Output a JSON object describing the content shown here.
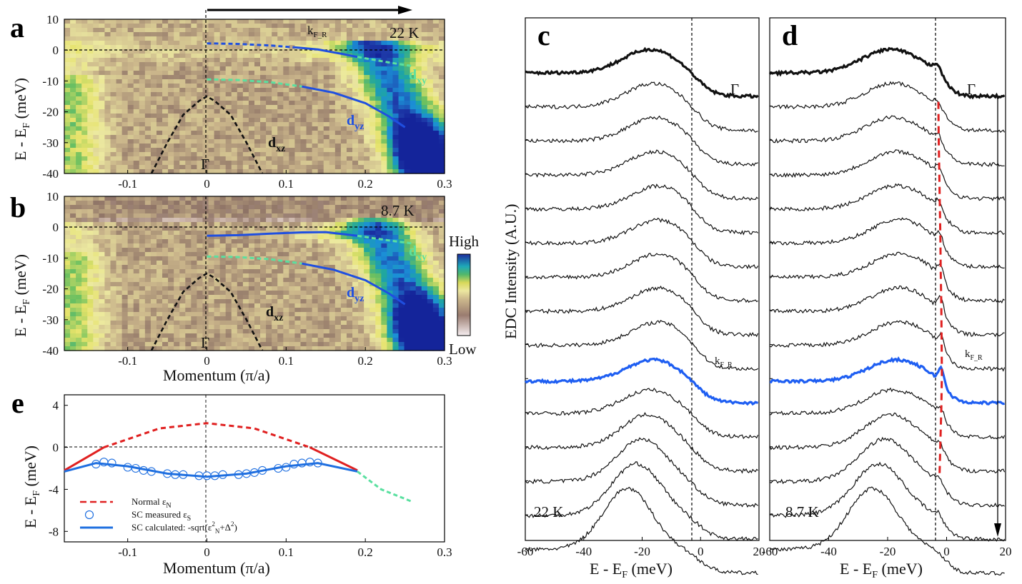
{
  "colors": {
    "dyz": "#1f4fe0",
    "dxy": "#5ae0a0",
    "dxz": "#111111",
    "normal": "#e02020",
    "fit": "#1f6fe0",
    "thick_blue": "#1e5ef2",
    "cmap": [
      "#f4ece8",
      "#c9b2a6",
      "#8e7366",
      "#c9b48a",
      "#ece9a0",
      "#e6e36a",
      "#6cc060",
      "#1fa6a0",
      "#1b8fd6",
      "#1e3aa8",
      "#14249a"
    ]
  },
  "panel_a": {
    "letter": "a",
    "temp": "22 K",
    "kfr_label": "k",
    "kfr_sub": "F_R",
    "gamma": "Γ",
    "dxy": "d",
    "dxy_sub": "xy",
    "dyz": "d",
    "dyz_sub": "yz",
    "dxz": "d",
    "dxz_sub": "xz",
    "ylabel_main": "E - E",
    "ylabel_sub": "F",
    "ylabel_unit": " (meV)"
  },
  "panel_b": {
    "letter": "b",
    "temp": "8.7 K",
    "gamma": "Γ",
    "dxy": "d",
    "dxy_sub": "xy",
    "dyz": "d",
    "dyz_sub": "yz",
    "dxz": "d",
    "dxz_sub": "xz",
    "ylabel_main": "E - E",
    "ylabel_sub": "F",
    "ylabel_unit": " (meV)",
    "xlabel": "Momentum (π/a)"
  },
  "colorbar": {
    "high": "High",
    "low": "Low"
  },
  "panel_c": {
    "letter": "c",
    "temp": "22 K",
    "gamma": "Γ",
    "kfr_label": "k",
    "kfr_sub": "F_R",
    "ylabel": "EDC Intensity (A.U.)",
    "xlabel_main": "E - E",
    "xlabel_sub": "F",
    "xlabel_unit": " (meV)"
  },
  "panel_d": {
    "letter": "d",
    "temp": "8.7 K",
    "gamma": "Γ",
    "kfr_label": "k",
    "kfr_sub": "F_R",
    "xlabel_main": "E - E",
    "xlabel_sub": "F",
    "xlabel_unit": " (meV)"
  },
  "panel_e": {
    "letter": "e",
    "ylabel_main": "E - E",
    "ylabel_sub": "F",
    "ylabel_unit": " (meV)",
    "xlabel": "Momentum (π/a)",
    "legend": {
      "normal_main": "Normal ε",
      "normal_sub": "N",
      "measured_main": "SC measured ε",
      "measured_sub": "S",
      "calc_a": "SC calculated: -sqrt(ε",
      "calc_b": "2",
      "calc_c": "N",
      "calc_d": "+Δ",
      "calc_e": "2",
      "calc_f": ")"
    }
  },
  "chart_data": [
    {
      "id": "a",
      "type": "heatmap",
      "title": "22 K",
      "xlabel": "",
      "ylabel": "E - EF (meV)",
      "xlim": [
        -0.18,
        0.3
      ],
      "ylim": [
        -40,
        10
      ],
      "xticks": [
        -0.1,
        0,
        0.1,
        0.2,
        0.3
      ],
      "xtick_labels": [
        "-0.1",
        "0",
        "0.1",
        "0.2",
        "0.3"
      ],
      "yticks": [
        10,
        0,
        -10,
        -20,
        -30,
        -40
      ],
      "ytick_labels": [
        "10",
        "0",
        "-10",
        "-20",
        "-30",
        "-40"
      ],
      "series": [
        {
          "name": "dyz-dotted",
          "x": [
            0,
            0.04,
            0.08,
            0.11
          ],
          "y": [
            2.2,
            2.0,
            1.5,
            0.9
          ]
        },
        {
          "name": "dyz-solid",
          "x": [
            0.11,
            0.14,
            0.17,
            0.19
          ],
          "y": [
            0.9,
            0.2,
            -1.2,
            -2.2
          ]
        },
        {
          "name": "dxy-dotted-near",
          "x": [
            0.19,
            0.23,
            0.26
          ],
          "y": [
            -2.2,
            -4.0,
            -5.2
          ]
        },
        {
          "name": "dxy-dotted",
          "x": [
            0,
            0.04,
            0.08,
            0.12
          ],
          "y": [
            -9.5,
            -9.7,
            -10.4,
            -11.8
          ]
        },
        {
          "name": "dyz-deep",
          "x": [
            0.12,
            0.16,
            0.2,
            0.23,
            0.25
          ],
          "y": [
            -11.8,
            -13.8,
            -17.2,
            -21.5,
            -25
          ]
        },
        {
          "name": "dxz",
          "x": [
            -0.07,
            -0.05,
            -0.03,
            -0.01,
            0,
            0.01,
            0.03,
            0.05,
            0.07
          ],
          "y": [
            -40,
            -30,
            -21,
            -16.5,
            -15,
            -16.5,
            -21,
            -30,
            -40
          ]
        }
      ]
    },
    {
      "id": "b",
      "type": "heatmap",
      "title": "8.7 K",
      "xlabel": "Momentum (π/a)",
      "ylabel": "E - EF (meV)",
      "xlim": [
        -0.18,
        0.3
      ],
      "ylim": [
        -40,
        10
      ],
      "xticks": [
        -0.1,
        0,
        0.1,
        0.2,
        0.3
      ],
      "xtick_labels": [
        "-0.1",
        "0",
        "0.1",
        "0.2",
        "0.3"
      ],
      "yticks": [
        10,
        0,
        -10,
        -20,
        -30,
        -40
      ],
      "ytick_labels": [
        "10",
        "0",
        "-10",
        "-20",
        "-30",
        "-40"
      ],
      "series": [
        {
          "name": "dyz-sc",
          "x": [
            0,
            0.04,
            0.08,
            0.12,
            0.15,
            0.19
          ],
          "y": [
            -2.8,
            -2.6,
            -2.1,
            -1.7,
            -1.6,
            -2.8
          ]
        },
        {
          "name": "dxy-dotted-near",
          "x": [
            0.19,
            0.23,
            0.26
          ],
          "y": [
            -2.8,
            -4.3,
            -5.3
          ]
        },
        {
          "name": "dxy-dotted",
          "x": [
            0,
            0.04,
            0.08,
            0.12
          ],
          "y": [
            -9.5,
            -9.7,
            -10.4,
            -11.8
          ]
        },
        {
          "name": "dyz-deep",
          "x": [
            0.12,
            0.16,
            0.2,
            0.23,
            0.25
          ],
          "y": [
            -11.8,
            -13.8,
            -17.2,
            -21.5,
            -25
          ]
        },
        {
          "name": "dxz",
          "x": [
            -0.07,
            -0.05,
            -0.03,
            -0.01,
            0,
            0.01,
            0.03,
            0.05,
            0.07
          ],
          "y": [
            -40,
            -30,
            -21,
            -16.5,
            -15,
            -16.5,
            -21,
            -30,
            -40
          ]
        }
      ]
    },
    {
      "id": "c",
      "type": "line",
      "title": "22 K",
      "xlabel": "E - EF (meV)",
      "ylabel": "EDC Intensity (A.U.)",
      "xlim": [
        -60,
        20
      ],
      "xticks": [
        -60,
        -40,
        -20,
        0,
        20
      ],
      "xtick_labels": [
        "-60",
        "-40",
        "-20",
        "0",
        "20"
      ],
      "n_curves": 15,
      "highlight": {
        "gamma": 0,
        "kF_R": 9
      },
      "peak_energy": [
        -17,
        -16,
        -15,
        -15,
        -14,
        -14,
        -14,
        -14,
        -14,
        -16,
        -17,
        -18,
        -20,
        -22,
        -25
      ],
      "edge_width": 3
    },
    {
      "id": "d",
      "type": "line",
      "title": "8.7 K",
      "xlabel": "E - EF (meV)",
      "xlim": [
        -60,
        20
      ],
      "xticks": [
        -60,
        -40,
        -20,
        0,
        20
      ],
      "xtick_labels": [
        "-60",
        "-40",
        "-20",
        "0",
        "20"
      ],
      "n_curves": 15,
      "highlight": {
        "gamma": 0,
        "kF_R": 9
      },
      "peak_energy": [
        -19,
        -18,
        -18,
        -17,
        -17,
        -16,
        -16,
        -16,
        -16,
        -17,
        -18,
        -19,
        -21,
        -23,
        -25
      ],
      "coherence_peak_energy": [
        -3,
        -2.8,
        -2.7,
        -2.5,
        -2.3,
        -2.1,
        -2.0,
        -1.8,
        -1.7,
        -1.6,
        -1.8,
        -2.1,
        -2.4,
        -2.7,
        -3.0
      ],
      "edge_width": 2
    },
    {
      "id": "e",
      "type": "scatter",
      "xlabel": "Momentum (π/a)",
      "ylabel": "E - EF (meV)",
      "xlim": [
        -0.18,
        0.3
      ],
      "ylim": [
        -9,
        5
      ],
      "xticks": [
        -0.1,
        0,
        0.1,
        0.2,
        0.3
      ],
      "xtick_labels": [
        "-0.1",
        "0",
        "0.1",
        "0.2",
        "0.3"
      ],
      "yticks": [
        4,
        0,
        -4,
        -8
      ],
      "ytick_labels": [
        "4",
        "0",
        "-4",
        "-8"
      ],
      "normal_dispersion": {
        "x": [
          -0.18,
          -0.13,
          -0.06,
          0,
          0.06,
          0.13,
          0.19
        ],
        "y": [
          -2.2,
          0,
          1.8,
          2.3,
          1.8,
          0,
          -2.2
        ]
      },
      "sc_measured": {
        "x": [
          -0.14,
          -0.13,
          -0.12,
          -0.1,
          -0.09,
          -0.08,
          -0.07,
          -0.05,
          -0.04,
          -0.03,
          -0.01,
          0,
          0.01,
          0.02,
          0.04,
          0.05,
          0.06,
          0.07,
          0.09,
          0.1,
          0.11,
          0.12,
          0.13,
          0.14
        ],
        "y": [
          -1.6,
          -1.4,
          -1.5,
          -1.9,
          -2.0,
          -2.2,
          -2.3,
          -2.5,
          -2.6,
          -2.6,
          -2.7,
          -2.7,
          -2.7,
          -2.6,
          -2.6,
          -2.5,
          -2.4,
          -2.2,
          -2.0,
          -1.9,
          -1.6,
          -1.5,
          -1.4,
          -1.5
        ]
      },
      "sc_calculated": {
        "x": [
          -0.18,
          -0.14,
          -0.1,
          -0.05,
          0,
          0.05,
          0.1,
          0.14,
          0.19
        ],
        "y": [
          -2.3,
          -1.5,
          -1.8,
          -2.5,
          -2.8,
          -2.5,
          -1.8,
          -1.5,
          -2.3
        ]
      },
      "dxy_dotted": {
        "x": [
          0.19,
          0.22,
          0.26
        ],
        "y": [
          -2.3,
          -4.0,
          -5.2
        ]
      }
    }
  ]
}
